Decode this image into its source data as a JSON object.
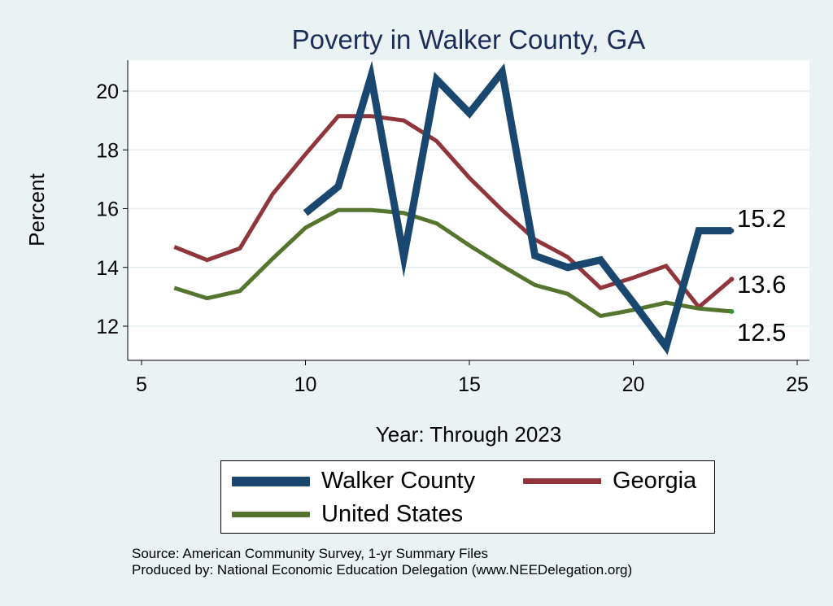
{
  "chart_data": {
    "type": "line",
    "title": "Poverty in Walker County, GA",
    "xlabel": "Year: Through 2023",
    "ylabel": "Percent",
    "xlim": [
      5,
      25
    ],
    "ylim": [
      10.8,
      21.2
    ],
    "xticks": [
      5,
      10,
      15,
      20,
      25
    ],
    "yticks": [
      12,
      14,
      16,
      18,
      20
    ],
    "grid": true,
    "legend_position": "bottom",
    "series": [
      {
        "name": "Walker County",
        "color": "#1a476f",
        "end_label": "15.2",
        "x": [
          10,
          11,
          12,
          13,
          14,
          15,
          16,
          17,
          18,
          19,
          20,
          21,
          22,
          23
        ],
        "values": [
          15.85,
          16.75,
          20.5,
          14.35,
          20.4,
          19.25,
          20.65,
          14.4,
          14.0,
          14.25,
          12.8,
          11.3,
          15.25,
          15.25
        ]
      },
      {
        "name": "Georgia",
        "color": "#90353b",
        "end_label": "13.6",
        "x": [
          6,
          7,
          8,
          9,
          10,
          11,
          12,
          13,
          14,
          15,
          16,
          17,
          18,
          19,
          20,
          21,
          22,
          23
        ],
        "values": [
          14.7,
          14.25,
          14.65,
          16.5,
          17.85,
          19.15,
          19.15,
          19.0,
          18.3,
          17.05,
          15.95,
          14.95,
          14.35,
          13.3,
          13.65,
          14.05,
          12.65,
          13.6
        ]
      },
      {
        "name": "United States",
        "color": "#55752f",
        "end_label": "12.5",
        "x": [
          6,
          7,
          8,
          9,
          10,
          11,
          12,
          13,
          14,
          15,
          16,
          17,
          18,
          19,
          20,
          21,
          22,
          23
        ],
        "values": [
          13.3,
          12.95,
          13.2,
          14.3,
          15.35,
          15.95,
          15.95,
          15.85,
          15.5,
          14.75,
          14.05,
          13.4,
          13.1,
          12.35,
          12.55,
          12.8,
          12.6,
          12.5
        ]
      }
    ]
  },
  "source_line": "Source: American Community Survey, 1-yr Summary Files",
  "produced_line": "Produced by: National Economic Education Delegation (www.NEEDelegation.org)"
}
